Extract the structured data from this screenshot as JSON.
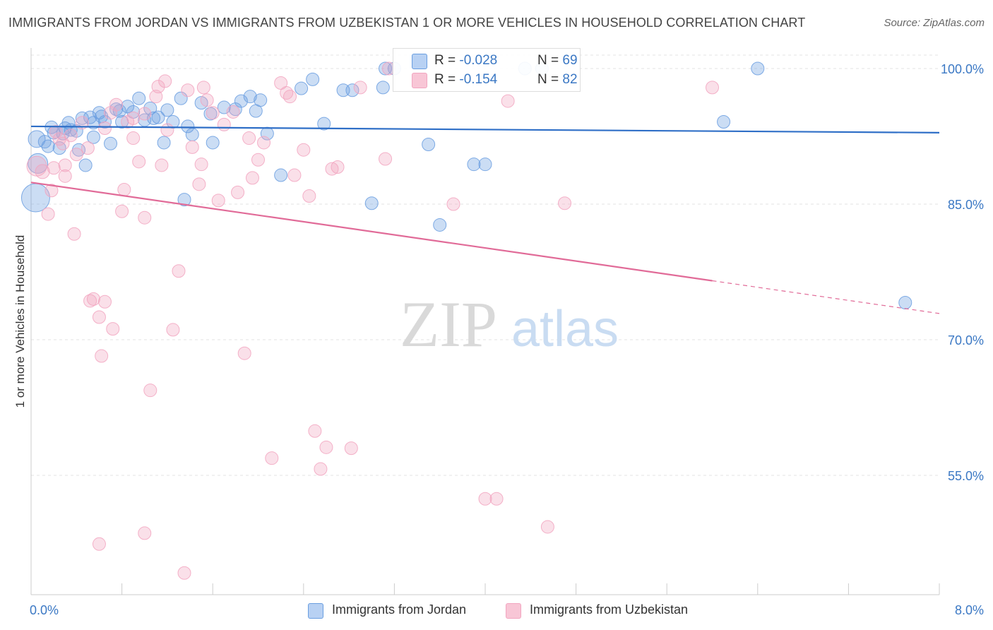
{
  "title": "IMMIGRANTS FROM JORDAN VS IMMIGRANTS FROM UZBEKISTAN 1 OR MORE VEHICLES IN HOUSEHOLD CORRELATION CHART",
  "source": "Source: ZipAtlas.com",
  "watermark": {
    "zip": "ZIP",
    "atlas": "atlas"
  },
  "legend": {
    "rows": [
      {
        "r_label": "R = ",
        "r_value": "-0.028",
        "n_label": "N = ",
        "n_value": "69"
      },
      {
        "r_label": "R = ",
        "r_value": "-0.154",
        "n_label": "N = ",
        "n_value": "82"
      }
    ]
  },
  "chart_data": {
    "type": "scatter",
    "xlabel": "",
    "ylabel": "1 or more Vehicles in Household",
    "xlim": [
      0.0,
      8.0
    ],
    "ylim": [
      42.0,
      102.0
    ],
    "x_tick_labels": [
      "0.0%",
      "8.0%"
    ],
    "y_ticks": [
      {
        "value": 100.0,
        "label": "100.0%"
      },
      {
        "value": 85.0,
        "label": "85.0%"
      },
      {
        "value": 70.0,
        "label": "70.0%"
      },
      {
        "value": 55.0,
        "label": "55.0%"
      }
    ],
    "grid": true,
    "legend_position": "top-center",
    "series": [
      {
        "name": "Immigrants from Jordan",
        "color": "#6a9ee0",
        "line_color": "#2f6fc7",
        "r": -0.028,
        "n": 69,
        "trend": {
          "x0": 0.0,
          "y0": 93.6,
          "x1": 8.0,
          "y1": 92.9,
          "solid_until": 8.0
        },
        "points": [
          [
            0.05,
            92.2,
            12
          ],
          [
            0.06,
            89.5,
            14
          ],
          [
            0.04,
            85.7,
            20
          ],
          [
            0.12,
            91.9,
            9
          ],
          [
            0.18,
            93.5,
            9
          ],
          [
            0.2,
            92.9,
            9
          ],
          [
            0.25,
            91.2,
            9
          ],
          [
            0.3,
            93.4,
            9
          ],
          [
            0.33,
            94.0,
            9
          ],
          [
            0.35,
            93.2,
            9
          ],
          [
            0.42,
            91.0,
            9
          ],
          [
            0.45,
            94.5,
            9
          ],
          [
            0.48,
            89.3,
            9
          ],
          [
            0.52,
            94.6,
            9
          ],
          [
            0.55,
            94.0,
            9
          ],
          [
            0.6,
            95.1,
            9
          ],
          [
            0.65,
            94.1,
            9
          ],
          [
            0.7,
            91.7,
            9
          ],
          [
            0.75,
            95.5,
            9
          ],
          [
            0.78,
            95.3,
            9
          ],
          [
            0.85,
            95.8,
            9
          ],
          [
            0.9,
            95.2,
            9
          ],
          [
            0.95,
            96.7,
            9
          ],
          [
            1.0,
            94.3,
            9
          ],
          [
            1.08,
            94.5,
            9
          ],
          [
            1.12,
            94.6,
            9
          ],
          [
            1.17,
            91.8,
            9
          ],
          [
            1.2,
            95.4,
            9
          ],
          [
            1.25,
            94.1,
            9
          ],
          [
            1.32,
            96.7,
            9
          ],
          [
            1.38,
            93.6,
            9
          ],
          [
            1.42,
            92.7,
            9
          ],
          [
            1.58,
            95.0,
            9
          ],
          [
            1.6,
            91.8,
            9
          ],
          [
            1.7,
            95.7,
            9
          ],
          [
            1.8,
            95.5,
            9
          ],
          [
            1.85,
            96.4,
            9
          ],
          [
            1.93,
            96.9,
            9
          ],
          [
            1.98,
            95.3,
            9
          ],
          [
            2.02,
            96.5,
            9
          ],
          [
            2.08,
            92.8,
            9
          ],
          [
            2.2,
            88.2,
            9
          ],
          [
            2.38,
            97.8,
            9
          ],
          [
            2.48,
            98.8,
            9
          ],
          [
            2.58,
            93.9,
            9
          ],
          [
            2.75,
            97.6,
            9
          ],
          [
            2.83,
            97.6,
            9
          ],
          [
            3.0,
            85.1,
            9
          ],
          [
            3.1,
            97.9,
            9
          ],
          [
            3.12,
            100.0,
            9
          ],
          [
            3.2,
            100.0,
            9
          ],
          [
            3.5,
            91.6,
            9
          ],
          [
            3.6,
            82.7,
            9
          ],
          [
            3.9,
            89.4,
            9
          ],
          [
            4.0,
            89.4,
            9
          ],
          [
            4.35,
            100.0,
            9
          ],
          [
            4.5,
            100.0,
            9
          ],
          [
            6.1,
            94.1,
            9
          ],
          [
            6.4,
            100.0,
            9
          ],
          [
            7.7,
            74.1,
            9
          ],
          [
            0.8,
            94.1,
            9
          ],
          [
            0.55,
            92.4,
            9
          ],
          [
            0.15,
            91.4,
            9
          ],
          [
            1.35,
            85.5,
            9
          ],
          [
            0.28,
            92.8,
            9
          ],
          [
            0.62,
            94.7,
            9
          ],
          [
            1.05,
            95.6,
            9
          ],
          [
            1.5,
            96.2,
            9
          ],
          [
            0.4,
            93.1,
            9
          ]
        ]
      },
      {
        "name": "Immigrants from Uzbekistan",
        "color": "#f2a5c0",
        "line_color": "#e16b98",
        "r": -0.154,
        "n": 82,
        "trend": {
          "x0": 0.0,
          "y0": 87.4,
          "x1": 8.0,
          "y1": 72.9,
          "solid_until": 6.0
        },
        "points": [
          [
            0.05,
            89.2,
            14
          ],
          [
            0.1,
            88.6,
            10
          ],
          [
            0.15,
            83.9,
            9
          ],
          [
            0.18,
            86.5,
            9
          ],
          [
            0.22,
            93.0,
            9
          ],
          [
            0.25,
            92.2,
            9
          ],
          [
            0.28,
            91.7,
            9
          ],
          [
            0.3,
            88.1,
            9
          ],
          [
            0.35,
            92.6,
            9
          ],
          [
            0.38,
            81.7,
            9
          ],
          [
            0.45,
            94.0,
            9
          ],
          [
            0.5,
            91.2,
            9
          ],
          [
            0.52,
            74.3,
            9
          ],
          [
            0.55,
            74.5,
            9
          ],
          [
            0.6,
            72.5,
            9
          ],
          [
            0.62,
            68.2,
            9
          ],
          [
            0.65,
            74.2,
            9
          ],
          [
            0.7,
            95.1,
            9
          ],
          [
            0.72,
            71.2,
            9
          ],
          [
            0.8,
            84.2,
            9
          ],
          [
            0.82,
            86.6,
            9
          ],
          [
            0.85,
            94.1,
            9
          ],
          [
            0.9,
            92.3,
            9
          ],
          [
            0.95,
            89.7,
            9
          ],
          [
            1.0,
            83.5,
            9
          ],
          [
            1.05,
            64.4,
            9
          ],
          [
            1.1,
            96.9,
            9
          ],
          [
            1.12,
            98.0,
            9
          ],
          [
            1.15,
            89.3,
            9
          ],
          [
            1.18,
            98.6,
            9
          ],
          [
            1.2,
            93.2,
            9
          ],
          [
            1.25,
            71.1,
            9
          ],
          [
            1.3,
            77.6,
            9
          ],
          [
            1.38,
            97.6,
            9
          ],
          [
            1.42,
            91.3,
            9
          ],
          [
            1.48,
            87.2,
            9
          ],
          [
            1.52,
            97.9,
            9
          ],
          [
            1.55,
            96.5,
            9
          ],
          [
            1.6,
            95.1,
            9
          ],
          [
            1.65,
            85.4,
            9
          ],
          [
            1.7,
            93.8,
            9
          ],
          [
            1.78,
            95.2,
            9
          ],
          [
            1.82,
            86.3,
            9
          ],
          [
            1.88,
            68.5,
            9
          ],
          [
            1.92,
            92.3,
            9
          ],
          [
            1.95,
            87.9,
            9
          ],
          [
            2.0,
            89.9,
            9
          ],
          [
            2.05,
            91.8,
            9
          ],
          [
            2.12,
            56.9,
            9
          ],
          [
            2.2,
            98.4,
            9
          ],
          [
            2.25,
            97.3,
            9
          ],
          [
            2.32,
            88.2,
            9
          ],
          [
            2.4,
            91.0,
            9
          ],
          [
            2.45,
            85.9,
            9
          ],
          [
            2.5,
            59.9,
            9
          ],
          [
            2.55,
            55.7,
            9
          ],
          [
            2.6,
            58.1,
            9
          ],
          [
            2.65,
            88.9,
            9
          ],
          [
            2.7,
            89.1,
            9
          ],
          [
            2.82,
            58.0,
            9
          ],
          [
            2.9,
            97.9,
            9
          ],
          [
            3.12,
            90.0,
            9
          ],
          [
            3.15,
            100.0,
            9
          ],
          [
            3.72,
            85.0,
            9
          ],
          [
            4.0,
            52.4,
            9
          ],
          [
            4.1,
            52.4,
            9
          ],
          [
            4.2,
            96.4,
            9
          ],
          [
            4.55,
            49.3,
            9
          ],
          [
            4.7,
            85.1,
            9
          ],
          [
            6.0,
            97.9,
            9
          ],
          [
            1.0,
            48.6,
            0
          ],
          [
            0.6,
            47.4,
            9
          ],
          [
            1.35,
            44.2,
            9
          ],
          [
            1.0,
            95.0,
            9
          ],
          [
            0.65,
            93.4,
            9
          ],
          [
            0.2,
            89.0,
            9
          ],
          [
            0.9,
            94.5,
            9
          ],
          [
            1.5,
            89.4,
            9
          ],
          [
            0.4,
            90.5,
            0
          ],
          [
            2.28,
            96.9,
            9
          ],
          [
            0.75,
            96.0,
            0
          ],
          [
            0.3,
            89.3,
            0
          ]
        ]
      }
    ]
  },
  "bottom_legend": [
    "Immigrants from Jordan",
    "Immigrants from Uzbekistan"
  ]
}
